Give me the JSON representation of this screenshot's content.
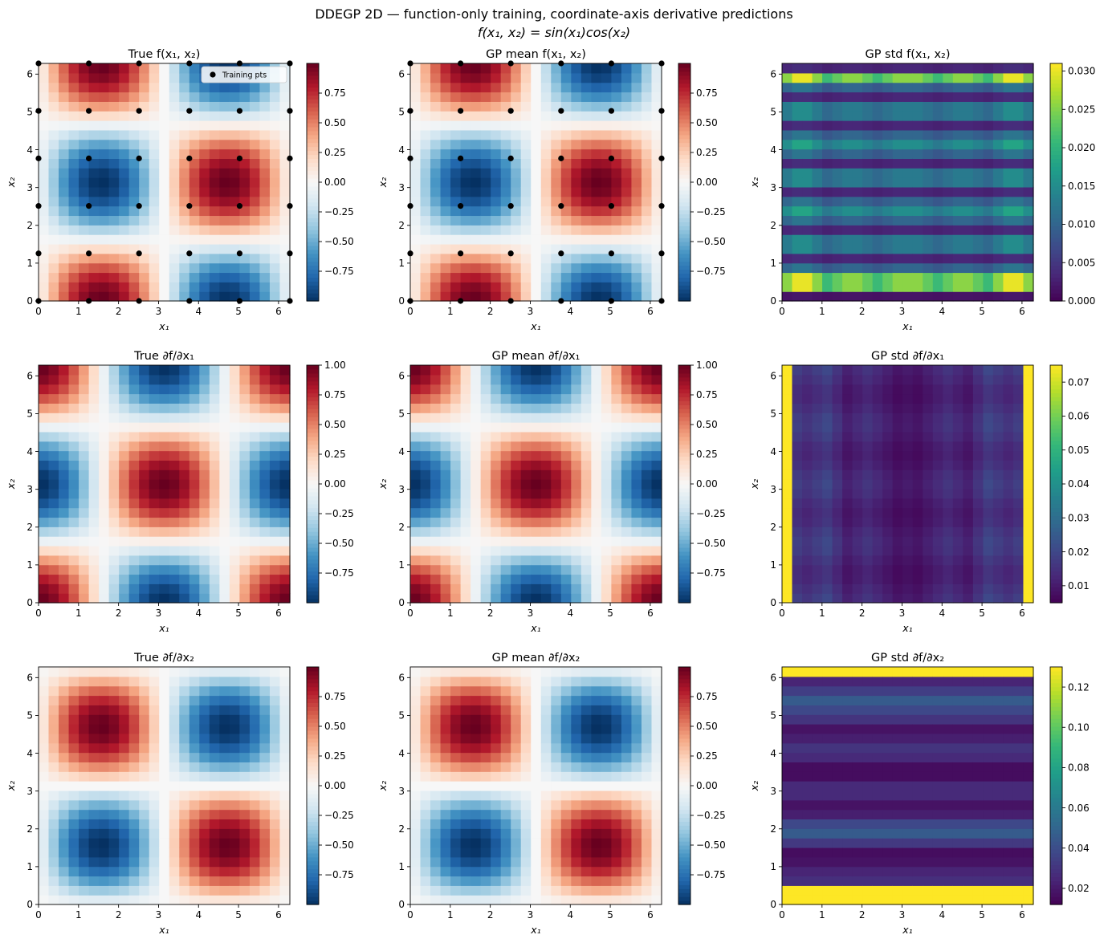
{
  "figure": {
    "title_line1": "DDEGP 2D — function-only training, coordinate-axis derivative predictions",
    "title_line2": "f(x₁, x₂) = sin(x₁)cos(x₂)"
  },
  "colors": {
    "rdbu_r": [
      "#053061",
      "#2166ac",
      "#4393c3",
      "#92c5de",
      "#d1e5f0",
      "#f7f7f7",
      "#fddbc7",
      "#f4a582",
      "#d6604d",
      "#b2182b",
      "#67001f"
    ],
    "viridis": [
      "#440154",
      "#482878",
      "#3e4989",
      "#31688e",
      "#26828e",
      "#1f9e89",
      "#35b779",
      "#6ece58",
      "#b5de2b",
      "#fde725"
    ],
    "training_points": "#000000"
  },
  "chart_data": [
    {
      "id": "true_f",
      "type": "heatmap",
      "title": "True f(x₁, x₂)",
      "xlabel": "x₁",
      "ylabel": "x₂",
      "xlim": [
        0,
        6.283
      ],
      "ylim": [
        0,
        6.283
      ],
      "grid": false,
      "field": "f",
      "colormap": "RdBu_r",
      "vlim": [
        -1,
        1
      ],
      "cbar_ticks": [
        0.75,
        0.5,
        0.25,
        0,
        -0.25,
        -0.5,
        -0.75
      ],
      "cbar_tick_labels": [
        "0.75",
        "0.50",
        "0.25",
        "0.00",
        "−0.25",
        "−0.50",
        "−0.75"
      ],
      "legend": {
        "label": "Training pts",
        "placement": "top-right"
      },
      "training_points": {
        "x": [
          0,
          1.257,
          2.513,
          3.77,
          5.027,
          6.283
        ],
        "y": [
          0,
          1.257,
          2.513,
          3.77,
          5.027,
          6.283
        ]
      }
    },
    {
      "id": "gp_f",
      "type": "heatmap",
      "title": "GP mean f(x₁, x₂)",
      "xlabel": "x₁",
      "ylabel": "x₂",
      "xlim": [
        0,
        6.283
      ],
      "ylim": [
        0,
        6.283
      ],
      "grid": false,
      "field": "f",
      "colormap": "RdBu_r",
      "vlim": [
        -1,
        1
      ],
      "cbar_ticks": [
        0.75,
        0.5,
        0.25,
        0,
        -0.25,
        -0.5,
        -0.75
      ],
      "cbar_tick_labels": [
        "0.75",
        "0.50",
        "0.25",
        "0.00",
        "−0.25",
        "−0.50",
        "−0.75"
      ],
      "training_points": {
        "x": [
          0,
          1.257,
          2.513,
          3.77,
          5.027,
          6.283
        ],
        "y": [
          0,
          1.257,
          2.513,
          3.77,
          5.027,
          6.283
        ]
      }
    },
    {
      "id": "std_f",
      "type": "heatmap",
      "title": "GP std f(x₁, x₂)",
      "xlabel": "x₁",
      "ylabel": "x₂",
      "xlim": [
        0,
        6.283
      ],
      "ylim": [
        0,
        6.283
      ],
      "grid": false,
      "field": "std_f",
      "colormap": "viridis",
      "vlim": [
        0,
        0.031
      ],
      "cbar_ticks": [
        0.03,
        0.025,
        0.02,
        0.015,
        0.01,
        0.005,
        0
      ],
      "cbar_tick_labels": [
        "0.030",
        "0.025",
        "0.020",
        "0.015",
        "0.010",
        "0.005",
        "0.000"
      ]
    },
    {
      "id": "true_dx1",
      "type": "heatmap",
      "title": "True ∂f/∂x₁",
      "xlabel": "x₁",
      "ylabel": "x₂",
      "xlim": [
        0,
        6.283
      ],
      "ylim": [
        0,
        6.283
      ],
      "grid": false,
      "field": "dfdx1",
      "colormap": "RdBu_r",
      "vlim": [
        -1,
        1
      ],
      "cbar_ticks": [
        1,
        0.75,
        0.5,
        0.25,
        0,
        -0.25,
        -0.5,
        -0.75
      ],
      "cbar_tick_labels": [
        "1.00",
        "0.75",
        "0.50",
        "0.25",
        "0.00",
        "−0.25",
        "−0.50",
        "−0.75"
      ]
    },
    {
      "id": "gp_dx1",
      "type": "heatmap",
      "title": "GP mean ∂f/∂x₁",
      "xlabel": "x₁",
      "ylabel": "x₂",
      "xlim": [
        0,
        6.283
      ],
      "ylim": [
        0,
        6.283
      ],
      "grid": false,
      "field": "dfdx1",
      "colormap": "RdBu_r",
      "vlim": [
        -1,
        1
      ],
      "cbar_ticks": [
        1,
        0.75,
        0.5,
        0.25,
        0,
        -0.25,
        -0.5,
        -0.75
      ],
      "cbar_tick_labels": [
        "1.00",
        "0.75",
        "0.50",
        "0.25",
        "0.00",
        "−0.25",
        "−0.50",
        "−0.75"
      ]
    },
    {
      "id": "std_dx1",
      "type": "heatmap",
      "title": "GP std ∂f/∂x₁",
      "xlabel": "x₁",
      "ylabel": "x₂",
      "xlim": [
        0,
        6.283
      ],
      "ylim": [
        0,
        6.283
      ],
      "grid": false,
      "field": "std_dx1",
      "colormap": "viridis",
      "vlim": [
        0.005,
        0.075
      ],
      "cbar_ticks": [
        0.07,
        0.06,
        0.05,
        0.04,
        0.03,
        0.02,
        0.01
      ],
      "cbar_tick_labels": [
        "0.07",
        "0.06",
        "0.05",
        "0.04",
        "0.03",
        "0.02",
        "0.01"
      ]
    },
    {
      "id": "true_dx2",
      "type": "heatmap",
      "title": "True ∂f/∂x₂",
      "xlabel": "x₁",
      "ylabel": "x₂",
      "xlim": [
        0,
        6.283
      ],
      "ylim": [
        0,
        6.283
      ],
      "grid": false,
      "field": "dfdx2",
      "colormap": "RdBu_r",
      "vlim": [
        -1,
        1
      ],
      "cbar_ticks": [
        0.75,
        0.5,
        0.25,
        0,
        -0.25,
        -0.5,
        -0.75
      ],
      "cbar_tick_labels": [
        "0.75",
        "0.50",
        "0.25",
        "0.00",
        "−0.25",
        "−0.50",
        "−0.75"
      ]
    },
    {
      "id": "gp_dx2",
      "type": "heatmap",
      "title": "GP mean ∂f/∂x₂",
      "xlabel": "x₁",
      "ylabel": "x₂",
      "xlim": [
        0,
        6.283
      ],
      "ylim": [
        0,
        6.283
      ],
      "grid": false,
      "field": "dfdx2",
      "colormap": "RdBu_r",
      "vlim": [
        -1,
        1
      ],
      "cbar_ticks": [
        0.75,
        0.5,
        0.25,
        0,
        -0.25,
        -0.5,
        -0.75
      ],
      "cbar_tick_labels": [
        "0.75",
        "0.50",
        "0.25",
        "0.00",
        "−0.25",
        "−0.50",
        "−0.75"
      ]
    },
    {
      "id": "std_dx2",
      "type": "heatmap",
      "title": "GP std ∂f/∂x₂",
      "xlabel": "x₁",
      "ylabel": "x₂",
      "xlim": [
        0,
        6.283
      ],
      "ylim": [
        0,
        6.283
      ],
      "grid": false,
      "field": "std_dx2",
      "colormap": "viridis",
      "vlim": [
        0.012,
        0.13
      ],
      "cbar_ticks": [
        0.12,
        0.1,
        0.08,
        0.06,
        0.04,
        0.02
      ],
      "cbar_tick_labels": [
        "0.12",
        "0.10",
        "0.08",
        "0.06",
        "0.04",
        "0.02"
      ]
    }
  ],
  "axes": {
    "tick_values": [
      0,
      1,
      2,
      3,
      4,
      5,
      6
    ],
    "tick_labels": [
      "0",
      "1",
      "2",
      "3",
      "4",
      "5",
      "6"
    ]
  }
}
